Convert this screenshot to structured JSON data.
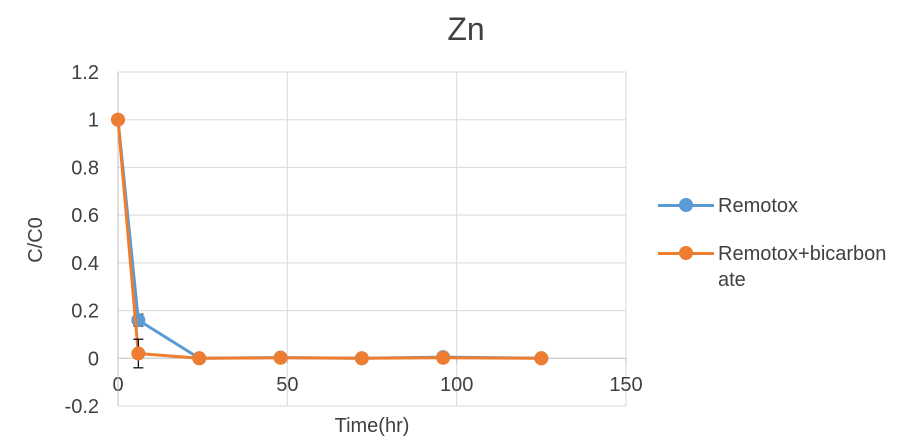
{
  "chart_data": {
    "type": "line",
    "title": "Zn",
    "xlabel": "Time(hr)",
    "ylabel": "C/C0",
    "xlim": [
      0,
      150
    ],
    "ylim": [
      -0.2,
      1.2
    ],
    "x_ticks": [
      "0",
      "50",
      "100",
      "150"
    ],
    "y_ticks": [
      "-0.2",
      "0",
      "0.2",
      "0.4",
      "0.6",
      "0.8",
      "1",
      "1.2"
    ],
    "grid": true,
    "legend_position": "right",
    "series": [
      {
        "name": "Remotox",
        "color": "#5B9BD5",
        "x": [
          0,
          6,
          24,
          48,
          72,
          96,
          125
        ],
        "y": [
          1.0,
          0.16,
          0.0,
          0.003,
          0.0,
          0.005,
          0.0
        ],
        "error": [
          0,
          0.025,
          0,
          0,
          0,
          0,
          0
        ]
      },
      {
        "name": "Remotox+bicarbonate",
        "color": "#ED7D31",
        "x": [
          0,
          6,
          24,
          48,
          72,
          96,
          125
        ],
        "y": [
          1.0,
          0.02,
          0.0,
          0.002,
          0.0,
          0.002,
          0.0
        ],
        "error": [
          0,
          0.06,
          0,
          0,
          0,
          0,
          0
        ]
      }
    ]
  }
}
